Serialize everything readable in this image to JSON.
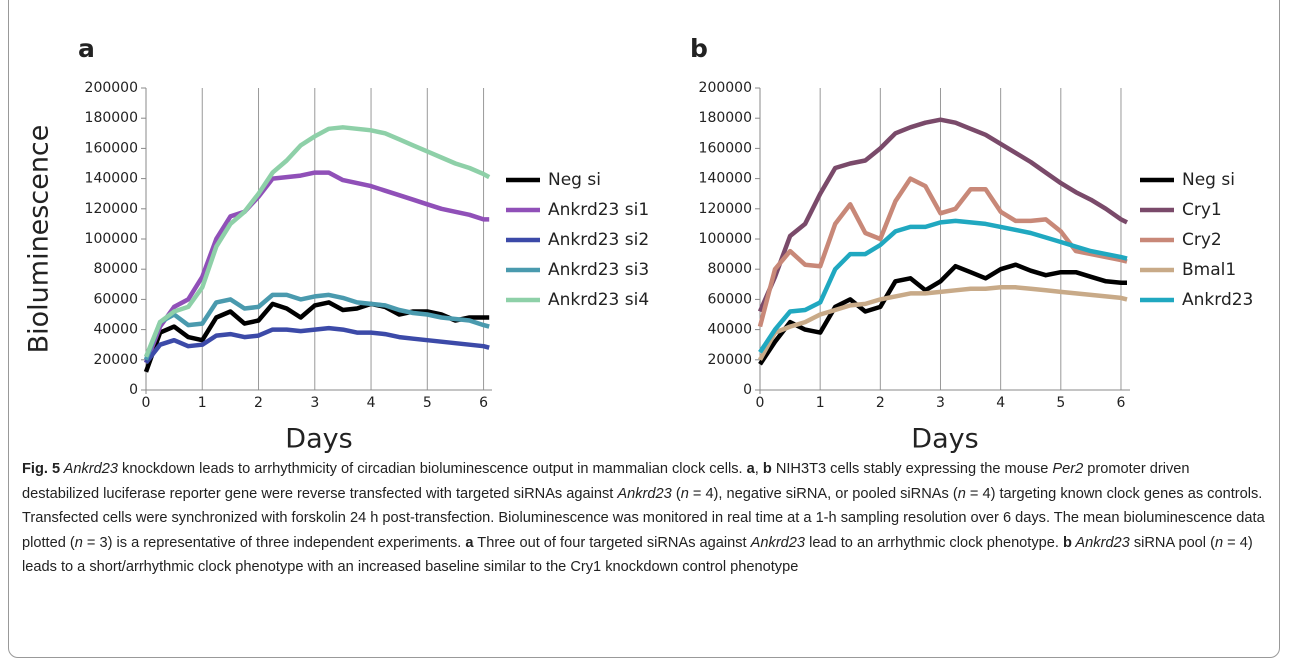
{
  "chart_data": [
    {
      "type": "line",
      "label": "a",
      "ylabel": "Bioluminescence",
      "xlabel": "Days",
      "x": [
        0,
        0.25,
        0.5,
        0.75,
        1,
        1.25,
        1.5,
        1.75,
        2,
        2.25,
        2.5,
        2.75,
        3,
        3.25,
        3.5,
        3.75,
        4,
        4.25,
        4.5,
        4.75,
        5,
        5.25,
        5.5,
        5.75,
        6,
        6.1
      ],
      "series": [
        {
          "name": "Neg si",
          "color": "#000000",
          "values": [
            12000,
            38000,
            42000,
            35000,
            33000,
            48000,
            52000,
            44000,
            46000,
            57000,
            54000,
            48000,
            56000,
            58000,
            53000,
            54000,
            57000,
            55000,
            50000,
            52000,
            52000,
            50000,
            46000,
            48000,
            48000,
            48000
          ]
        },
        {
          "name": "Ankrd23 si1",
          "color": "#9050b8",
          "values": [
            18000,
            42000,
            55000,
            60000,
            75000,
            100000,
            115000,
            118000,
            128000,
            140000,
            141000,
            142000,
            144000,
            144000,
            139000,
            137000,
            135000,
            132000,
            129000,
            126000,
            123000,
            120000,
            118000,
            116000,
            113000,
            113000
          ]
        },
        {
          "name": "Ankrd23 si2",
          "color": "#3c4aa8",
          "values": [
            18000,
            30000,
            33000,
            29000,
            30000,
            36000,
            37000,
            35000,
            36000,
            40000,
            40000,
            39000,
            40000,
            41000,
            40000,
            38000,
            38000,
            37000,
            35000,
            34000,
            33000,
            32000,
            31000,
            30000,
            29000,
            28000
          ]
        },
        {
          "name": "Ankrd23 si3",
          "color": "#4a9aae",
          "values": [
            20000,
            45000,
            50000,
            43000,
            44000,
            58000,
            60000,
            54000,
            55000,
            63000,
            63000,
            60000,
            62000,
            63000,
            61000,
            58000,
            57000,
            56000,
            53000,
            51000,
            50000,
            48000,
            47000,
            46000,
            43000,
            42000
          ]
        },
        {
          "name": "Ankrd23 si4",
          "color": "#8ed0a8",
          "values": [
            22000,
            45000,
            52000,
            55000,
            68000,
            95000,
            110000,
            118000,
            130000,
            144000,
            152000,
            162000,
            168000,
            173000,
            174000,
            173000,
            172000,
            170000,
            166000,
            162000,
            158000,
            154000,
            150000,
            147000,
            143000,
            141000
          ]
        }
      ],
      "xlim": [
        0,
        6.15
      ],
      "ylim": [
        0,
        200000
      ],
      "xticks": [
        0,
        1,
        2,
        3,
        4,
        5,
        6
      ],
      "yticks": [
        0,
        20000,
        40000,
        60000,
        80000,
        100000,
        120000,
        140000,
        160000,
        180000,
        200000
      ],
      "grid": "x"
    },
    {
      "type": "line",
      "label": "b",
      "xlabel": "Days",
      "x": [
        0,
        0.25,
        0.5,
        0.75,
        1,
        1.25,
        1.5,
        1.75,
        2,
        2.25,
        2.5,
        2.75,
        3,
        3.25,
        3.5,
        3.75,
        4,
        4.25,
        4.5,
        4.75,
        5,
        5.25,
        5.5,
        5.75,
        6,
        6.1
      ],
      "series": [
        {
          "name": "Neg si",
          "color": "#000000",
          "values": [
            17000,
            32000,
            45000,
            40000,
            38000,
            55000,
            60000,
            52000,
            55000,
            72000,
            74000,
            66000,
            72000,
            82000,
            78000,
            74000,
            80000,
            83000,
            79000,
            76000,
            78000,
            78000,
            75000,
            72000,
            71000,
            71000
          ]
        },
        {
          "name": "Cry1",
          "color": "#7a4a6a",
          "values": [
            52000,
            75000,
            102000,
            110000,
            130000,
            147000,
            150000,
            152000,
            160000,
            170000,
            174000,
            177000,
            179000,
            177000,
            173000,
            169000,
            163000,
            157000,
            151000,
            144000,
            137000,
            131000,
            126000,
            120000,
            113000,
            111000
          ]
        },
        {
          "name": "Cry2",
          "color": "#c88878",
          "values": [
            42000,
            80000,
            92000,
            83000,
            82000,
            110000,
            123000,
            104000,
            100000,
            125000,
            140000,
            135000,
            117000,
            120000,
            133000,
            133000,
            118000,
            112000,
            112000,
            113000,
            105000,
            92000,
            90000,
            88000,
            86000,
            85000
          ]
        },
        {
          "name": "Bmal1",
          "color": "#c8aa88",
          "values": [
            20000,
            38000,
            42000,
            45000,
            50000,
            53000,
            56000,
            57000,
            60000,
            62000,
            64000,
            64000,
            65000,
            66000,
            67000,
            67000,
            68000,
            68000,
            67000,
            66000,
            65000,
            64000,
            63000,
            62000,
            61000,
            60000
          ]
        },
        {
          "name": "Ankrd23",
          "color": "#20a8c0",
          "values": [
            25000,
            40000,
            52000,
            53000,
            58000,
            80000,
            90000,
            90000,
            96000,
            105000,
            108000,
            108000,
            111000,
            112000,
            111000,
            110000,
            108000,
            106000,
            104000,
            101000,
            98000,
            95000,
            92000,
            90000,
            88000,
            87000
          ]
        }
      ],
      "xlim": [
        0,
        6.15
      ],
      "ylim": [
        0,
        200000
      ],
      "xticks": [
        0,
        1,
        2,
        3,
        4,
        5,
        6
      ],
      "yticks": [
        0,
        20000,
        40000,
        60000,
        80000,
        100000,
        120000,
        140000,
        160000,
        180000,
        200000
      ],
      "grid": "x"
    }
  ],
  "caption": {
    "segments": [
      "Fig. 5",
      " Ankrd23",
      " knockdown leads to arrhythmicity of circadian bioluminescence output in mammalian clock cells. ",
      "a",
      ", ",
      "b",
      " NIH3T3 cells stably expressing the mouse ",
      "Per2",
      " promoter driven destabilized luciferase reporter gene were reverse transfected with targeted siRNAs against ",
      "Ankrd23",
      " (",
      "n",
      " = 4), negative siRNA, or pooled siRNAs (",
      "n",
      " = 4) targeting known clock genes as controls. Transfected cells were synchronized with forskolin 24 h post-transfection. Bioluminescence was monitored in real time at a 1-h sampling resolution over 6 days. The mean bioluminescence data plotted (",
      "n",
      " = 3) is a representative of three independent experiments. ",
      "a",
      " Three out of four targeted siRNAs against ",
      "Ankrd23",
      " lead to an arrhythmic clock phenotype. ",
      "b",
      " Ankrd23",
      " siRNA pool (",
      "n",
      " = 4) leads to a short/arrhythmic clock phenotype with an increased baseline similar to the Cry1 knockdown control phenotype"
    ]
  }
}
